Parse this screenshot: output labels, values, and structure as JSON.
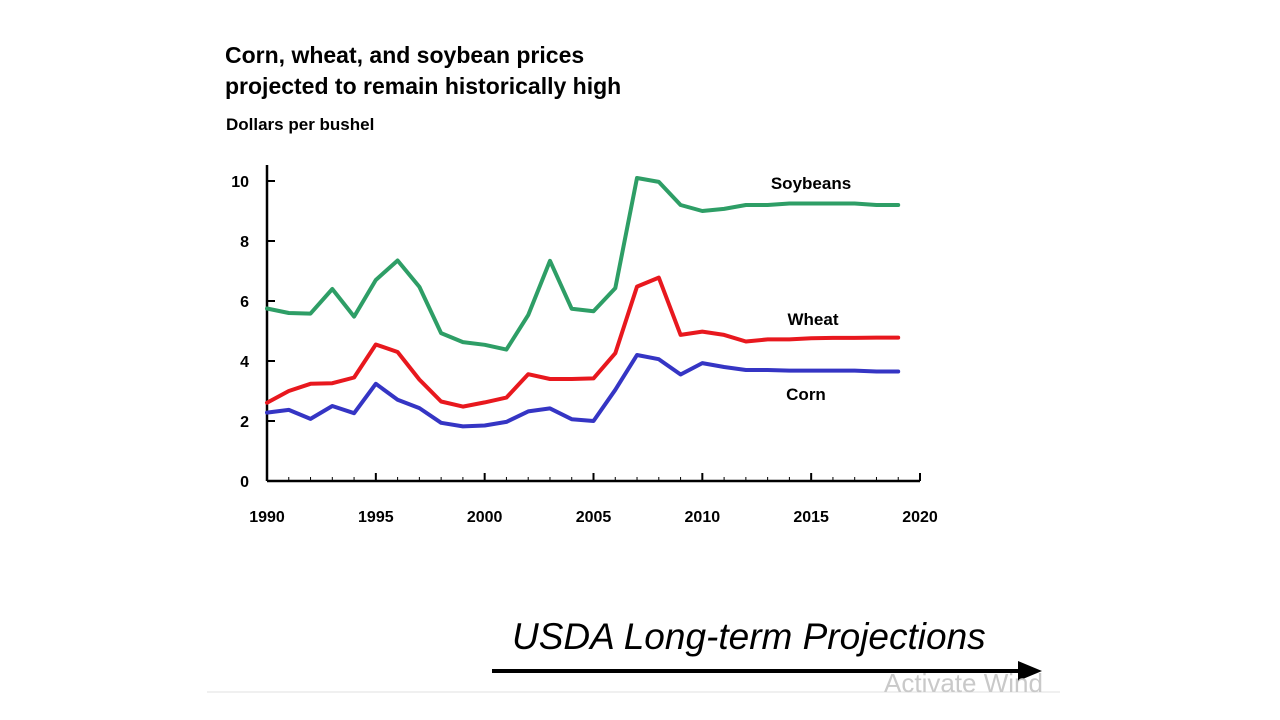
{
  "chart_data": {
    "type": "line",
    "title": "Corn, wheat, and soybean prices",
    "subtitle": "projected to remain historically high",
    "ylabel": "Dollars per bushel",
    "xlabel": "",
    "xlim": [
      1990,
      2020
    ],
    "ylim": [
      0,
      10.5
    ],
    "x_ticks": [
      1990,
      1995,
      2000,
      2005,
      2010,
      2015,
      2020
    ],
    "y_ticks": [
      0,
      2,
      4,
      6,
      8,
      10
    ],
    "grid": false,
    "x": [
      1990,
      1991,
      1992,
      1993,
      1994,
      1995,
      1996,
      1997,
      1998,
      1999,
      2000,
      2001,
      2002,
      2003,
      2004,
      2005,
      2006,
      2007,
      2008,
      2009,
      2010,
      2011,
      2012,
      2013,
      2014,
      2015,
      2016,
      2017,
      2018,
      2019
    ],
    "series": [
      {
        "name": "Soybeans",
        "color": "#2e9e66",
        "values": [
          5.75,
          5.6,
          5.58,
          6.4,
          5.48,
          6.7,
          7.35,
          6.47,
          4.93,
          4.63,
          4.54,
          4.38,
          5.53,
          7.34,
          5.74,
          5.66,
          6.43,
          10.1,
          9.97,
          9.2,
          9.0,
          9.07,
          9.2,
          9.2,
          9.25,
          9.25,
          9.25,
          9.25,
          9.2,
          9.2
        ]
      },
      {
        "name": "Wheat",
        "color": "#e8181e",
        "values": [
          2.61,
          3.0,
          3.24,
          3.26,
          3.45,
          4.55,
          4.3,
          3.38,
          2.65,
          2.48,
          2.62,
          2.78,
          3.56,
          3.4,
          3.4,
          3.42,
          4.26,
          6.48,
          6.78,
          4.87,
          4.98,
          4.87,
          4.65,
          4.72,
          4.72,
          4.76,
          4.77,
          4.77,
          4.78,
          4.78
        ]
      },
      {
        "name": "Corn",
        "color": "#3535c4",
        "values": [
          2.28,
          2.37,
          2.07,
          2.5,
          2.26,
          3.24,
          2.71,
          2.43,
          1.94,
          1.82,
          1.85,
          1.97,
          2.32,
          2.42,
          2.06,
          2.0,
          3.04,
          4.2,
          4.06,
          3.55,
          3.93,
          3.8,
          3.7,
          3.7,
          3.68,
          3.68,
          3.68,
          3.68,
          3.65,
          3.65
        ]
      }
    ]
  },
  "footer": {
    "title": "USDA Long-term Projections",
    "watermark": "Activate Wind"
  }
}
